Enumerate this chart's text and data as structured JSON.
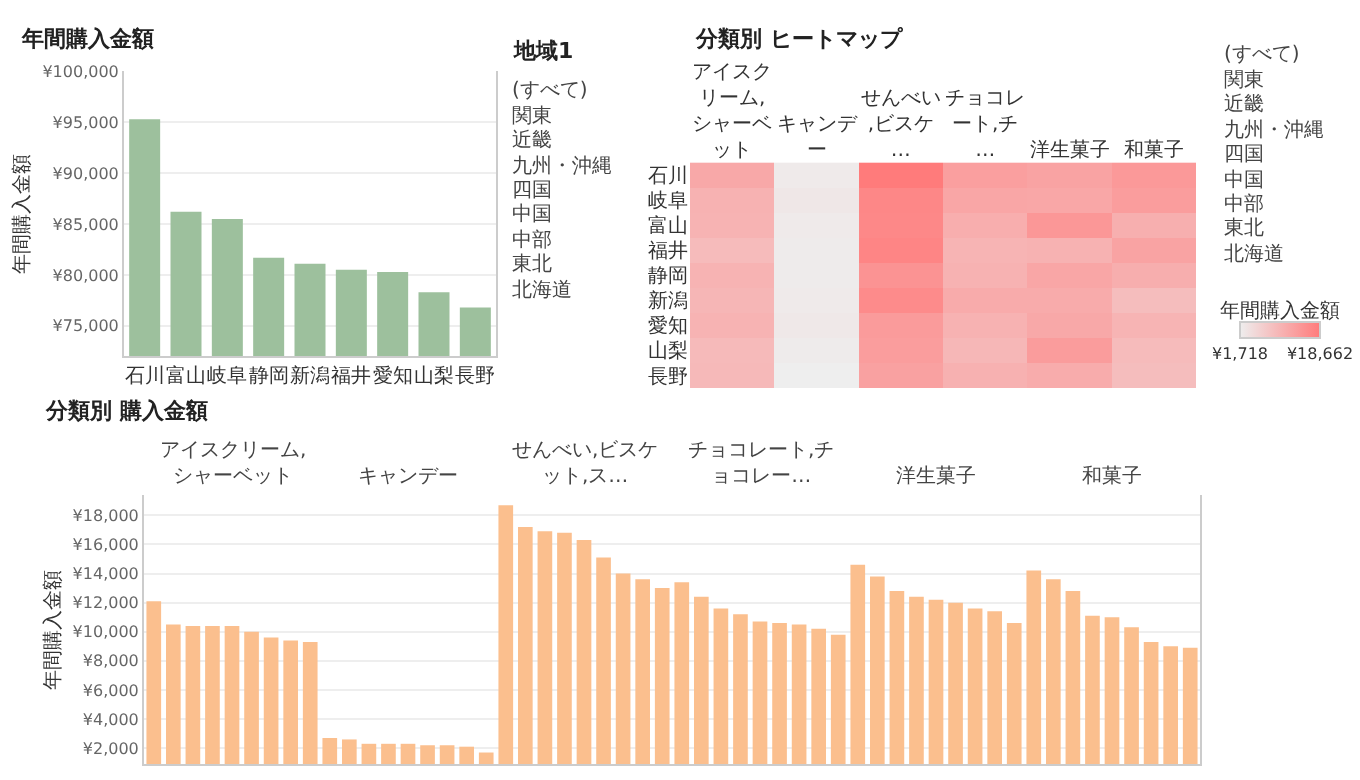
{
  "chart_data": [
    {
      "type": "bar",
      "title": "年間購入金額",
      "ylabel": "年間購入金額",
      "categories": [
        "石川",
        "富山",
        "岐阜",
        "静岡",
        "新潟",
        "福井",
        "愛知",
        "山梨",
        "長野"
      ],
      "values": [
        95300,
        86200,
        85500,
        81700,
        81100,
        80500,
        80300,
        78300,
        76800
      ],
      "color": "#9dc09d",
      "ylim": [
        72000,
        100000
      ],
      "yticks": [
        {
          "value": 75000,
          "label": "¥75,000"
        },
        {
          "value": 80000,
          "label": "¥80,000"
        },
        {
          "value": 85000,
          "label": "¥85,000"
        },
        {
          "value": 90000,
          "label": "¥90,000"
        },
        {
          "value": 95000,
          "label": "¥95,000"
        },
        {
          "value": 100000,
          "label": "¥100,000"
        }
      ],
      "grid": "y"
    },
    {
      "type": "other",
      "title": "地域1",
      "annotations": [
        "(すべて)",
        "関東",
        "近畿",
        "九州・沖縄",
        "四国",
        "中国",
        "中部",
        "東北",
        "北海道"
      ]
    },
    {
      "type": "heatmap",
      "title": "分類別 ヒートマップ",
      "categories": [
        "アイスクリーム,シャーベット",
        "キャンデー",
        "せんべい,ビスケ…",
        "チョコレート,チ…",
        "洋生菓子",
        "和菓子"
      ],
      "y_categories": [
        "石川",
        "岐阜",
        "富山",
        "福井",
        "静岡",
        "新潟",
        "愛知",
        "山梨",
        "長野"
      ],
      "cells": [
        [
          12100,
          2300,
          18662,
          13400,
          12800,
          14200
        ],
        [
          10500,
          2700,
          16900,
          12400,
          12200,
          13600
        ],
        [
          10400,
          2300,
          16800,
          11200,
          14600,
          11000
        ],
        [
          9300,
          2100,
          17200,
          10200,
          10600,
          12800
        ],
        [
          10400,
          2200,
          15100,
          10600,
          12400,
          11100
        ],
        [
          10000,
          2300,
          16300,
          11600,
          11600,
          8900
        ],
        [
          10400,
          2600,
          14000,
          10500,
          12000,
          10300
        ],
        [
          9400,
          2200,
          13600,
          9800,
          13800,
          9300
        ],
        [
          9600,
          1718,
          13000,
          10700,
          11400,
          9000
        ]
      ],
      "clabel": "年間購入金額",
      "clim": [
        1718,
        18662
      ],
      "cticks": [
        {
          "value": 1718,
          "label": "¥1,718"
        },
        {
          "value": 18662,
          "label": "¥18,662"
        }
      ]
    },
    {
      "type": "other",
      "annotations": [
        "(すべて)",
        "関東",
        "近畿",
        "九州・沖縄",
        "四国",
        "中国",
        "中部",
        "東北",
        "北海道"
      ]
    },
    {
      "type": "bar",
      "title": "分類別 購入金額",
      "ylabel": "年間購入金額",
      "annotations": [
        "アイスクリーム,シャーベット",
        "キャンデー",
        "せんべい,ビスケット,ス…",
        "チョコレート,チョコレー…",
        "洋生菓子",
        "和菓子"
      ],
      "categories": [
        null,
        null,
        null,
        null,
        null,
        null,
        null,
        null,
        null,
        null,
        null,
        null,
        null,
        null,
        null,
        null,
        null,
        null,
        null,
        null,
        null,
        null,
        null,
        null,
        null,
        null,
        null,
        null,
        null,
        null,
        null,
        null,
        null,
        null,
        null,
        null,
        null,
        null,
        null,
        null,
        null,
        null,
        null,
        null,
        null,
        null,
        null,
        null,
        null,
        null,
        null,
        null,
        null,
        null
      ],
      "ylim": [
        900,
        19400
      ],
      "yticks": [
        {
          "value": 2000,
          "label": "¥2,000"
        },
        {
          "value": 4000,
          "label": "¥4,000"
        },
        {
          "value": 6000,
          "label": "¥6,000"
        },
        {
          "value": 8000,
          "label": "¥8,000"
        },
        {
          "value": 10000,
          "label": "¥10,000"
        },
        {
          "value": 12000,
          "label": "¥12,000"
        },
        {
          "value": 14000,
          "label": "¥14,000"
        },
        {
          "value": 16000,
          "label": "¥16,000"
        },
        {
          "value": 18000,
          "label": "¥18,000"
        }
      ],
      "grid": "y",
      "series": [
        {
          "color": "#fbbf8e",
          "values": [
            12100,
            10500,
            10400,
            10400,
            10400,
            10000,
            9600,
            9400,
            9300,
            null,
            null,
            null,
            null,
            null,
            null,
            null,
            null,
            null,
            null,
            null,
            null,
            null,
            null,
            null,
            null,
            null,
            null,
            null,
            null,
            null,
            null,
            null,
            null,
            null,
            null,
            null,
            null,
            null,
            null,
            null,
            null,
            null,
            null,
            null,
            null,
            null,
            null,
            null,
            null,
            null,
            null,
            null,
            null,
            null
          ]
        },
        {
          "color": "#fbbf8e",
          "values": [
            null,
            null,
            null,
            null,
            null,
            null,
            null,
            null,
            null,
            2700,
            2600,
            2300,
            2300,
            2300,
            2200,
            2200,
            2100,
            1700,
            null,
            null,
            null,
            null,
            null,
            null,
            null,
            null,
            null,
            null,
            null,
            null,
            null,
            null,
            null,
            null,
            null,
            null,
            null,
            null,
            null,
            null,
            null,
            null,
            null,
            null,
            null,
            null,
            null,
            null,
            null,
            null,
            null,
            null,
            null,
            null
          ]
        },
        {
          "color": "#fbbf8e",
          "values": [
            null,
            null,
            null,
            null,
            null,
            null,
            null,
            null,
            null,
            null,
            null,
            null,
            null,
            null,
            null,
            null,
            null,
            null,
            18700,
            17200,
            16900,
            16800,
            16300,
            15100,
            14000,
            13600,
            13000,
            null,
            null,
            null,
            null,
            null,
            null,
            null,
            null,
            null,
            null,
            null,
            null,
            null,
            null,
            null,
            null,
            null,
            null,
            null,
            null,
            null,
            null,
            null,
            null,
            null,
            null,
            null
          ]
        },
        {
          "color": "#fbbf8e",
          "values": [
            null,
            null,
            null,
            null,
            null,
            null,
            null,
            null,
            null,
            null,
            null,
            null,
            null,
            null,
            null,
            null,
            null,
            null,
            null,
            null,
            null,
            null,
            null,
            null,
            null,
            null,
            null,
            13400,
            12400,
            11600,
            11200,
            10700,
            10600,
            10500,
            10200,
            9800,
            null,
            null,
            null,
            null,
            null,
            null,
            null,
            null,
            null,
            null,
            null,
            null,
            null,
            null,
            null,
            null,
            null,
            null
          ]
        },
        {
          "color": "#fbbf8e",
          "values": [
            null,
            null,
            null,
            null,
            null,
            null,
            null,
            null,
            null,
            null,
            null,
            null,
            null,
            null,
            null,
            null,
            null,
            null,
            null,
            null,
            null,
            null,
            null,
            null,
            null,
            null,
            null,
            null,
            null,
            null,
            null,
            null,
            null,
            null,
            null,
            null,
            14600,
            13800,
            12800,
            12400,
            12200,
            12000,
            11600,
            11400,
            10600,
            null,
            null,
            null,
            null,
            null,
            null,
            null,
            null,
            null
          ]
        },
        {
          "color": "#fbbf8e",
          "values": [
            null,
            null,
            null,
            null,
            null,
            null,
            null,
            null,
            null,
            null,
            null,
            null,
            null,
            null,
            null,
            null,
            null,
            null,
            null,
            null,
            null,
            null,
            null,
            null,
            null,
            null,
            null,
            null,
            null,
            null,
            null,
            null,
            null,
            null,
            null,
            null,
            null,
            null,
            null,
            null,
            null,
            null,
            null,
            null,
            null,
            14200,
            13600,
            12800,
            11100,
            11000,
            10300,
            9300,
            9000,
            8900
          ]
        }
      ]
    }
  ]
}
